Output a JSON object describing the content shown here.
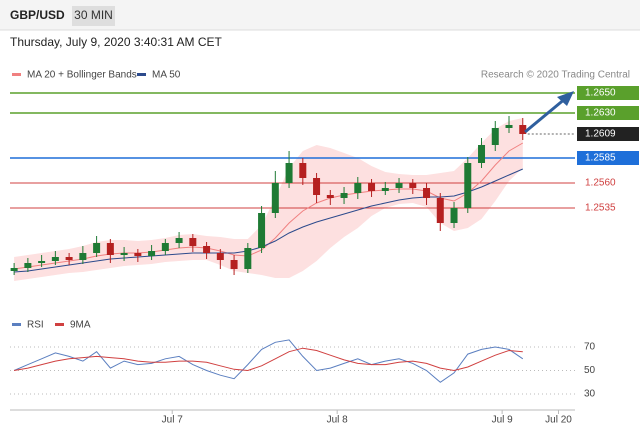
{
  "header": {
    "symbol": "GBP/USD",
    "interval": "30 MIN",
    "timestamp": "Thursday, July 9, 2020 3:40:31 AM CET"
  },
  "chart_data": [
    {
      "type": "candlestick",
      "source": "Research © 2020 Trading Central",
      "x": [
        -23,
        -21,
        -19,
        -17,
        -15,
        -13,
        -11,
        -9,
        -7,
        -5,
        -3,
        -1,
        1,
        3,
        5,
        7,
        9,
        11,
        13,
        15,
        17,
        19,
        21,
        23,
        25,
        27,
        29,
        31,
        33,
        35,
        37,
        39,
        41,
        43,
        45,
        47,
        49,
        51
      ],
      "open": [
        1.2472,
        1.2475,
        1.248,
        1.2482,
        1.2486,
        1.2483,
        1.249,
        1.25,
        1.2488,
        1.249,
        1.2487,
        1.2492,
        1.25,
        1.2505,
        1.2497,
        1.249,
        1.2483,
        1.2474,
        1.2495,
        1.253,
        1.256,
        1.258,
        1.2565,
        1.2548,
        1.2545,
        1.255,
        1.256,
        1.2552,
        1.2555,
        1.256,
        1.2555,
        1.2545,
        1.252,
        1.2535,
        1.258,
        1.2598,
        1.2615,
        1.2618
      ],
      "high": [
        1.248,
        1.2485,
        1.2488,
        1.2492,
        1.249,
        1.2497,
        1.2507,
        1.2504,
        1.2496,
        1.2494,
        1.2498,
        1.2504,
        1.2511,
        1.2509,
        1.2501,
        1.2494,
        1.2488,
        1.25,
        1.2537,
        1.2572,
        1.2592,
        1.2585,
        1.257,
        1.2553,
        1.2556,
        1.2566,
        1.2564,
        1.2561,
        1.2565,
        1.2564,
        1.256,
        1.255,
        1.2541,
        1.2586,
        1.2605,
        1.2622,
        1.2627,
        1.2625
      ],
      "low": [
        1.2468,
        1.2471,
        1.2476,
        1.2478,
        1.2478,
        1.2479,
        1.2486,
        1.248,
        1.2482,
        1.2481,
        1.2483,
        1.2488,
        1.2495,
        1.2491,
        1.2484,
        1.2474,
        1.2468,
        1.247,
        1.249,
        1.2525,
        1.2555,
        1.2558,
        1.254,
        1.2538,
        1.2539,
        1.2544,
        1.2546,
        1.2548,
        1.255,
        1.2549,
        1.2538,
        1.2512,
        1.2515,
        1.253,
        1.2575,
        1.2592,
        1.261,
        1.2603
      ],
      "close": [
        1.2475,
        1.248,
        1.2482,
        1.2486,
        1.2483,
        1.249,
        1.25,
        1.2488,
        1.249,
        1.2487,
        1.2492,
        1.25,
        1.2505,
        1.2497,
        1.249,
        1.2483,
        1.2474,
        1.2495,
        1.253,
        1.256,
        1.258,
        1.2565,
        1.2548,
        1.2545,
        1.255,
        1.256,
        1.2552,
        1.2555,
        1.256,
        1.2555,
        1.2545,
        1.252,
        1.2535,
        1.258,
        1.2598,
        1.2615,
        1.2618,
        1.2609
      ],
      "up_color": "#1e7a34",
      "down_color": "#b52020",
      "series": [
        {
          "name": "MA 20 + Bollinger Bands",
          "color": "#f08080",
          "band_color": "#fde0e0",
          "values": [
            1.2474,
            1.2476,
            1.2478,
            1.248,
            1.2482,
            1.2484,
            1.2487,
            1.2489,
            1.249,
            1.249,
            1.2491,
            1.2493,
            1.2495,
            1.2496,
            1.2495,
            1.2492,
            1.2488,
            1.2487,
            1.2493,
            1.2505,
            1.252,
            1.2532,
            1.254,
            1.2545,
            1.2548,
            1.255,
            1.2552,
            1.2553,
            1.2554,
            1.2554,
            1.2552,
            1.2545,
            1.2542,
            1.255,
            1.2562,
            1.2578,
            1.2592,
            1.26
          ],
          "upper": [
            1.2486,
            1.2488,
            1.249,
            1.2492,
            1.2494,
            1.2497,
            1.2501,
            1.2503,
            1.2503,
            1.2502,
            1.2503,
            1.2505,
            1.2508,
            1.2509,
            1.2507,
            1.2506,
            1.2504,
            1.2504,
            1.2518,
            1.2545,
            1.2575,
            1.2592,
            1.2598,
            1.2595,
            1.259,
            1.2585,
            1.2577,
            1.2571,
            1.2569,
            1.2568,
            1.2568,
            1.257,
            1.2572,
            1.2585,
            1.26,
            1.2614,
            1.2622,
            1.2625
          ],
          "lower": [
            1.2462,
            1.2464,
            1.2466,
            1.2468,
            1.247,
            1.2471,
            1.2473,
            1.2475,
            1.2477,
            1.2478,
            1.2479,
            1.2481,
            1.2482,
            1.2483,
            1.2483,
            1.2478,
            1.2472,
            1.247,
            1.2468,
            1.2465,
            1.2465,
            1.2472,
            1.2482,
            1.2495,
            1.2506,
            1.2515,
            1.2527,
            1.2535,
            1.2539,
            1.254,
            1.2536,
            1.252,
            1.2512,
            1.2515,
            1.2524,
            1.2542,
            1.2562,
            1.2575
          ]
        },
        {
          "name": "MA 50",
          "color": "#2c4a8c",
          "values": [
            1.2471,
            1.2472,
            1.2474,
            1.2476,
            1.2478,
            1.248,
            1.2482,
            1.2484,
            1.2485,
            1.2486,
            1.2487,
            1.2488,
            1.2489,
            1.249,
            1.249,
            1.249,
            1.249,
            1.2492,
            1.2496,
            1.2502,
            1.251,
            1.2516,
            1.2521,
            1.2525,
            1.2529,
            1.2533,
            1.2537,
            1.254,
            1.2543,
            1.2545,
            1.2546,
            1.2546,
            1.2547,
            1.2551,
            1.2556,
            1.2562,
            1.2568,
            1.2574
          ]
        }
      ],
      "levels": [
        {
          "value": 1.265,
          "label": "1.2650",
          "color": "#5aa02c",
          "style": "box",
          "line": "solid"
        },
        {
          "value": 1.263,
          "label": "1.2630",
          "color": "#5aa02c",
          "style": "box",
          "line": "solid"
        },
        {
          "value": 1.2609,
          "label": "1.2609",
          "color": "#222222",
          "style": "box",
          "line": "dotted"
        },
        {
          "value": 1.2585,
          "label": "1.2585",
          "color": "#1e6fd9",
          "style": "box",
          "line": "solid"
        },
        {
          "value": 1.256,
          "label": "1.2560",
          "color": "#d04040",
          "style": "text",
          "line": "solid"
        },
        {
          "value": 1.2535,
          "label": "1.2535",
          "color": "#d04040",
          "style": "text",
          "line": "solid"
        }
      ],
      "xlim": [
        -23.6,
        58.6
      ],
      "ylim": [
        1.2453,
        1.2683
      ]
    },
    {
      "type": "line",
      "series": [
        {
          "name": "RSI",
          "color": "#5b7fc0",
          "values": [
            50,
            55,
            60,
            65,
            62,
            58,
            66,
            52,
            58,
            55,
            56,
            60,
            62,
            55,
            50,
            46,
            43,
            55,
            68,
            74,
            76,
            62,
            50,
            52,
            56,
            60,
            55,
            58,
            60,
            56,
            50,
            40,
            48,
            64,
            68,
            70,
            68,
            60
          ]
        },
        {
          "name": "9MA",
          "color": "#d04040",
          "values": [
            50,
            52,
            55,
            58,
            60,
            61,
            62,
            61,
            60,
            58,
            57,
            57,
            58,
            58,
            57,
            54,
            51,
            50,
            54,
            60,
            66,
            69,
            67,
            63,
            59,
            56,
            55,
            55,
            57,
            58,
            56,
            52,
            50,
            53,
            58,
            63,
            67,
            66
          ]
        }
      ],
      "ylim": [
        20,
        80
      ],
      "yticks": [
        30,
        50,
        70
      ],
      "grid": true,
      "xticks": [
        {
          "value": 0,
          "label": "Jul 7"
        },
        {
          "value": 24,
          "label": "Jul 8"
        },
        {
          "value": 48,
          "label": "Jul 9"
        },
        {
          "value": 56.2,
          "label": "Jul 20"
        }
      ]
    }
  ]
}
